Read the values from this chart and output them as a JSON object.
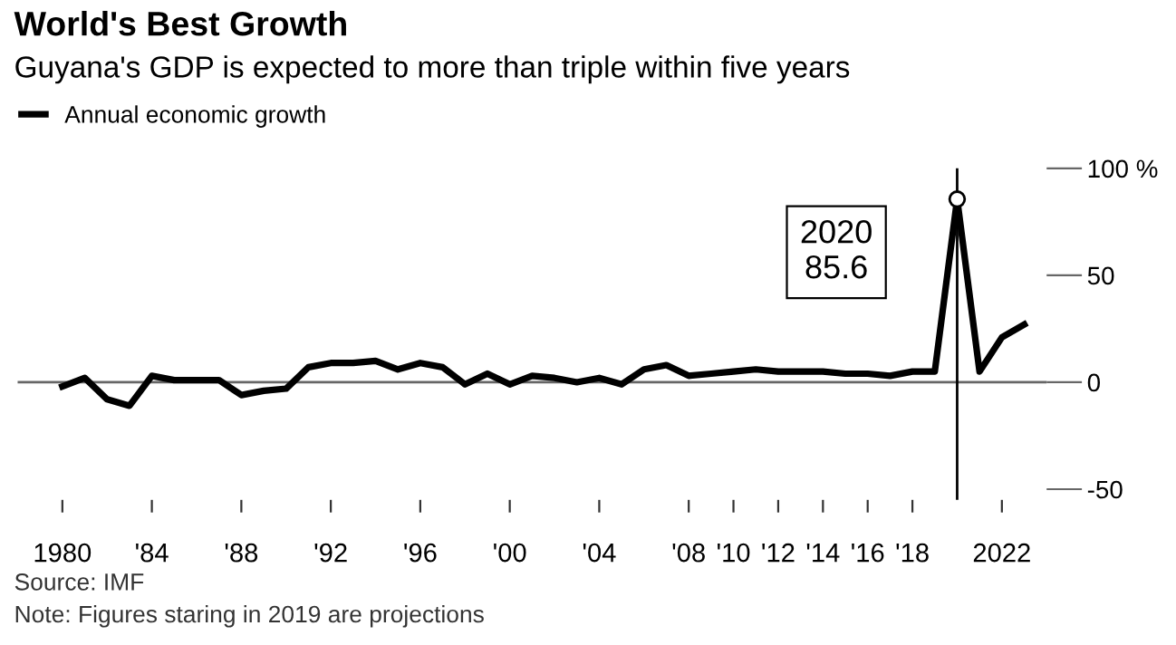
{
  "chart_data": {
    "type": "line",
    "title": "World's Best Growth",
    "subtitle": "Guyana's GDP is expected to more than triple within five years",
    "x": [
      1980,
      1981,
      1982,
      1983,
      1984,
      1985,
      1986,
      1987,
      1988,
      1989,
      1990,
      1991,
      1992,
      1993,
      1994,
      1995,
      1996,
      1997,
      1998,
      1999,
      2000,
      2001,
      2002,
      2003,
      2004,
      2005,
      2006,
      2007,
      2008,
      2009,
      2010,
      2011,
      2012,
      2013,
      2014,
      2015,
      2016,
      2017,
      2018,
      2019,
      2020,
      2021,
      2022,
      2023
    ],
    "series": [
      {
        "name": "Annual economic growth",
        "color": "#000000",
        "values": [
          -2,
          2,
          -8,
          -11,
          3,
          1,
          1,
          1,
          -6,
          -4,
          -3,
          7,
          9,
          9,
          10,
          6,
          9,
          7,
          -1,
          4,
          -1,
          3,
          2,
          0,
          2,
          -1,
          6,
          8,
          3,
          4,
          5,
          6,
          5,
          5,
          5,
          4,
          4,
          3,
          5,
          5,
          85.6,
          5,
          21,
          27
        ]
      }
    ],
    "xlim": [
      1978,
      2024
    ],
    "xticks": [
      {
        "value": 1980,
        "label": "1980"
      },
      {
        "value": 1984,
        "label": "'84"
      },
      {
        "value": 1988,
        "label": "'88"
      },
      {
        "value": 1992,
        "label": "'92"
      },
      {
        "value": 1996,
        "label": "'96"
      },
      {
        "value": 2000,
        "label": "'00"
      },
      {
        "value": 2004,
        "label": "'04"
      },
      {
        "value": 2008,
        "label": "'08"
      },
      {
        "value": 2010,
        "label": "'10"
      },
      {
        "value": 2012,
        "label": "'12"
      },
      {
        "value": 2014,
        "label": "'14"
      },
      {
        "value": 2016,
        "label": "'16"
      },
      {
        "value": 2018,
        "label": "'18"
      },
      {
        "value": 2022,
        "label": "2022"
      }
    ],
    "ylim": [
      -55,
      100
    ],
    "yticks": [
      {
        "value": -50,
        "label": "-50"
      },
      0,
      50,
      {
        "value": 100,
        "label": "100 %"
      }
    ],
    "ref_lines": [
      {
        "axis": "y",
        "value": 0,
        "color": "#666666"
      },
      {
        "axis": "x",
        "value": 2020,
        "color": "#000000"
      }
    ],
    "annotations": [
      {
        "text": "2020\n85.6",
        "x": 2020,
        "y": 85.6
      },
      "Source: IMF",
      "Note: Figures staring in 2019 are projections"
    ],
    "legend": "top left",
    "grid": false,
    "line_style": "solid"
  }
}
